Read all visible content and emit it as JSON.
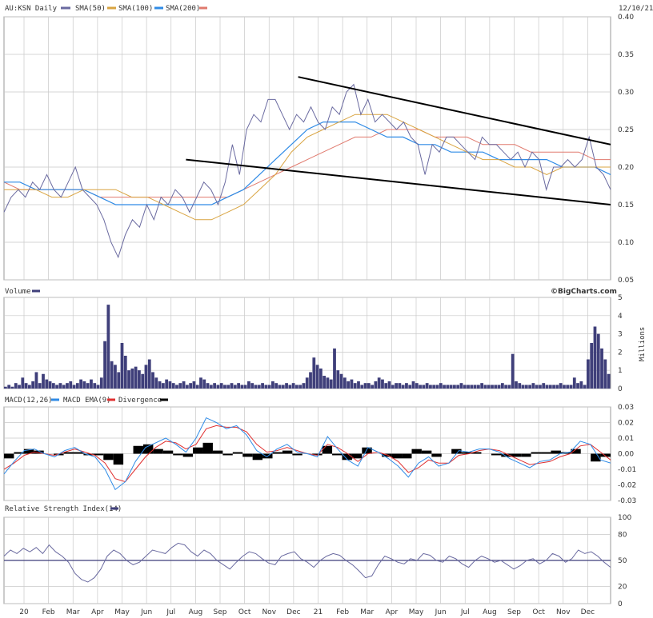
{
  "header": {
    "symbol_label": "AU:KSN Daily",
    "date": "12/10/21",
    "legend": [
      {
        "name": "SMA(50)",
        "color": "#3f3f7a"
      },
      {
        "name": "SMA(100)",
        "color": "#d9a441"
      },
      {
        "name": "SMA(200)",
        "color": "#2f8be6"
      },
      {
        "name": "",
        "color": "#e07a6e"
      }
    ]
  },
  "colors": {
    "price": "#6a6aa0",
    "sma100": "#d9a441",
    "sma200": "#2f8be6",
    "red": "#e07a6e",
    "volume": "#3f3f7a",
    "macd": "#2f8be6",
    "macd_ema": "#e03030",
    "grid": "#c9c9c9",
    "trend": "#000000"
  },
  "panels": {
    "price": {
      "credit": "©BigCharts.com"
    },
    "volume": {
      "legend": "Volume",
      "unit_label": "Millions"
    },
    "macd": {
      "legend": [
        {
          "name": "MACD(12,26)",
          "color": "#2f8be6"
        },
        {
          "name": "MACD EMA(9)",
          "color": "#e03030"
        },
        {
          "name": "Divergence",
          "color": "#000000"
        }
      ]
    },
    "rsi": {
      "legend": "Relative Strength Index(14)"
    }
  },
  "chart_data": {
    "type": "line",
    "x_labels": [
      "20",
      "Feb",
      "Mar",
      "Apr",
      "May",
      "Jun",
      "Jul",
      "Aug",
      "Sep",
      "Oct",
      "Nov",
      "Dec",
      "21",
      "Feb",
      "Mar",
      "Apr",
      "May",
      "Jun",
      "Jul",
      "Aug",
      "Sep",
      "Oct",
      "Nov",
      "Dec"
    ],
    "price": {
      "ylim": [
        0.05,
        0.4
      ],
      "ticks": [
        "0.40",
        "0.35",
        "0.30",
        "0.25",
        "0.20",
        "0.15",
        "0.10",
        "0.05"
      ],
      "close": [
        0.14,
        0.16,
        0.17,
        0.16,
        0.18,
        0.17,
        0.19,
        0.17,
        0.16,
        0.18,
        0.2,
        0.17,
        0.16,
        0.15,
        0.13,
        0.1,
        0.08,
        0.11,
        0.13,
        0.12,
        0.15,
        0.13,
        0.16,
        0.15,
        0.17,
        0.16,
        0.14,
        0.16,
        0.18,
        0.17,
        0.15,
        0.18,
        0.23,
        0.19,
        0.25,
        0.27,
        0.26,
        0.29,
        0.29,
        0.27,
        0.25,
        0.27,
        0.26,
        0.28,
        0.26,
        0.25,
        0.28,
        0.27,
        0.3,
        0.31,
        0.27,
        0.29,
        0.26,
        0.27,
        0.26,
        0.25,
        0.26,
        0.24,
        0.23,
        0.19,
        0.23,
        0.22,
        0.24,
        0.24,
        0.23,
        0.22,
        0.21,
        0.24,
        0.23,
        0.23,
        0.22,
        0.21,
        0.22,
        0.2,
        0.22,
        0.21,
        0.17,
        0.2,
        0.2,
        0.21,
        0.2,
        0.21,
        0.24,
        0.2,
        0.19,
        0.17
      ],
      "series": [
        {
          "name": "SMA(100)",
          "values": [
            0.17,
            0.17,
            0.17,
            0.16,
            0.16,
            0.17,
            0.17,
            0.17,
            0.16,
            0.16,
            0.15,
            0.14,
            0.13,
            0.13,
            0.14,
            0.15,
            0.17,
            0.19,
            0.22,
            0.24,
            0.25,
            0.26,
            0.27,
            0.27,
            0.27,
            0.26,
            0.25,
            0.24,
            0.23,
            0.22,
            0.21,
            0.21,
            0.2,
            0.2,
            0.19,
            0.2,
            0.2,
            0.2,
            0.2
          ]
        },
        {
          "name": "SMA(200)",
          "values": [
            0.18,
            0.18,
            0.17,
            0.17,
            0.17,
            0.17,
            0.16,
            0.15,
            0.15,
            0.15,
            0.15,
            0.15,
            0.15,
            0.15,
            0.16,
            0.17,
            0.19,
            0.21,
            0.23,
            0.25,
            0.26,
            0.26,
            0.26,
            0.25,
            0.24,
            0.24,
            0.23,
            0.23,
            0.22,
            0.22,
            0.22,
            0.21,
            0.21,
            0.21,
            0.21,
            0.2,
            0.2,
            0.2,
            0.19
          ]
        },
        {
          "name": "red",
          "values": [
            0.18,
            0.17,
            0.17,
            0.17,
            0.17,
            0.17,
            0.16,
            0.16,
            0.16,
            0.16,
            0.16,
            0.16,
            0.16,
            0.16,
            0.16,
            0.17,
            0.18,
            0.19,
            0.2,
            0.21,
            0.22,
            0.23,
            0.24,
            0.24,
            0.25,
            0.25,
            0.25,
            0.24,
            0.24,
            0.24,
            0.23,
            0.23,
            0.23,
            0.22,
            0.22,
            0.22,
            0.22,
            0.21,
            0.21
          ]
        }
      ],
      "trendlines": [
        {
          "from": [
            0.485,
            0.32
          ],
          "to": [
            1.0,
            0.23
          ]
        },
        {
          "from": [
            0.3,
            0.21
          ],
          "to": [
            1.0,
            0.15
          ]
        }
      ]
    },
    "volume": {
      "ylim": [
        0,
        5
      ],
      "ticks": [
        "5",
        "4",
        "3",
        "2",
        "1",
        "0"
      ],
      "values": [
        0.1,
        0.2,
        0.1,
        0.3,
        0.2,
        0.6,
        0.3,
        0.2,
        0.4,
        0.9,
        0.3,
        0.8,
        0.5,
        0.4,
        0.3,
        0.2,
        0.3,
        0.2,
        0.3,
        0.4,
        0.2,
        0.3,
        0.5,
        0.4,
        0.3,
        0.5,
        0.3,
        0.2,
        0.6,
        2.6,
        4.6,
        1.5,
        1.3,
        0.9,
        2.5,
        1.8,
        1.0,
        1.1,
        1.2,
        1.0,
        0.8,
        1.3,
        1.6,
        0.9,
        0.6,
        0.4,
        0.3,
        0.5,
        0.4,
        0.3,
        0.2,
        0.3,
        0.4,
        0.2,
        0.3,
        0.4,
        0.2,
        0.6,
        0.5,
        0.3,
        0.2,
        0.3,
        0.2,
        0.3,
        0.2,
        0.2,
        0.3,
        0.2,
        0.3,
        0.2,
        0.2,
        0.4,
        0.3,
        0.2,
        0.2,
        0.3,
        0.2,
        0.2,
        0.4,
        0.3,
        0.2,
        0.2,
        0.3,
        0.2,
        0.3,
        0.2,
        0.2,
        0.3,
        0.6,
        0.9,
        1.7,
        1.3,
        1.1,
        0.7,
        0.6,
        0.5,
        2.2,
        1.0,
        0.8,
        0.6,
        0.4,
        0.5,
        0.3,
        0.4,
        0.2,
        0.3,
        0.3,
        0.2,
        0.4,
        0.6,
        0.5,
        0.3,
        0.4,
        0.2,
        0.3,
        0.3,
        0.2,
        0.3,
        0.2,
        0.4,
        0.3,
        0.2,
        0.2,
        0.3,
        0.2,
        0.2,
        0.2,
        0.3,
        0.2,
        0.2,
        0.2,
        0.2,
        0.2,
        0.3,
        0.2,
        0.2,
        0.2,
        0.2,
        0.2,
        0.3,
        0.2,
        0.2,
        0.2,
        0.2,
        0.2,
        0.3,
        0.2,
        0.2,
        1.9,
        0.4,
        0.3,
        0.2,
        0.2,
        0.2,
        0.3,
        0.2,
        0.2,
        0.3,
        0.2,
        0.2,
        0.2,
        0.2,
        0.3,
        0.2,
        0.2,
        0.2,
        0.6,
        0.3,
        0.4,
        0.2,
        1.6,
        2.5,
        3.4,
        3.0,
        2.2,
        1.6,
        0.8
      ]
    },
    "macd": {
      "ylim": [
        -0.03,
        0.03
      ],
      "ticks": [
        "0.03",
        "0.02",
        "0.01",
        "0.00",
        "-0.01",
        "-0.02",
        "-0.03"
      ],
      "macd": [
        -0.013,
        -0.005,
        0.002,
        0.003,
        0.0,
        -0.002,
        0.002,
        0.004,
        0.0,
        -0.002,
        -0.01,
        -0.023,
        -0.018,
        -0.005,
        0.004,
        0.007,
        0.01,
        0.006,
        0.001,
        0.01,
        0.023,
        0.02,
        0.016,
        0.018,
        0.012,
        0.002,
        -0.002,
        0.003,
        0.006,
        0.001,
        0.0,
        -0.002,
        0.011,
        0.003,
        -0.004,
        -0.008,
        0.004,
        0.001,
        -0.003,
        -0.008,
        -0.015,
        -0.006,
        -0.002,
        -0.008,
        -0.006,
        0.002,
        0.001,
        0.003,
        0.003,
        0.001,
        -0.003,
        -0.006,
        -0.009,
        -0.005,
        -0.004,
        0.0,
        0.001,
        0.008,
        0.006,
        -0.004,
        -0.006
      ],
      "signal": [
        -0.01,
        -0.006,
        -0.001,
        0.001,
        0.0,
        -0.001,
        0.001,
        0.003,
        0.001,
        -0.001,
        -0.006,
        -0.016,
        -0.018,
        -0.01,
        -0.002,
        0.004,
        0.008,
        0.007,
        0.003,
        0.006,
        0.016,
        0.018,
        0.017,
        0.017,
        0.014,
        0.006,
        0.001,
        0.002,
        0.004,
        0.002,
        0.0,
        -0.001,
        0.006,
        0.004,
        0.0,
        -0.005,
        0.0,
        0.001,
        -0.001,
        -0.005,
        -0.012,
        -0.009,
        -0.004,
        -0.006,
        -0.006,
        -0.001,
        0.0,
        0.002,
        0.003,
        0.002,
        -0.001,
        -0.004,
        -0.007,
        -0.006,
        -0.005,
        -0.002,
        0.0,
        0.005,
        0.006,
        0.001,
        -0.004
      ]
    },
    "rsi": {
      "ylim": [
        0,
        100
      ],
      "ticks": [
        "100",
        "80",
        "50",
        "20",
        "0"
      ],
      "values": [
        55,
        62,
        58,
        64,
        60,
        65,
        58,
        68,
        60,
        55,
        48,
        35,
        28,
        25,
        30,
        40,
        55,
        62,
        58,
        50,
        45,
        48,
        55,
        62,
        60,
        58,
        65,
        70,
        68,
        60,
        55,
        62,
        58,
        50,
        45,
        40,
        48,
        55,
        60,
        58,
        52,
        47,
        45,
        55,
        58,
        60,
        52,
        48,
        42,
        50,
        55,
        58,
        56,
        50,
        45,
        38,
        30,
        32,
        45,
        55,
        52,
        48,
        46,
        52,
        50,
        58,
        56,
        50,
        48,
        55,
        52,
        46,
        42,
        50,
        55,
        52,
        48,
        50,
        45,
        40,
        44,
        50,
        52,
        46,
        50,
        58,
        55,
        48,
        52,
        62,
        58,
        60,
        55,
        48,
        42
      ]
    }
  }
}
